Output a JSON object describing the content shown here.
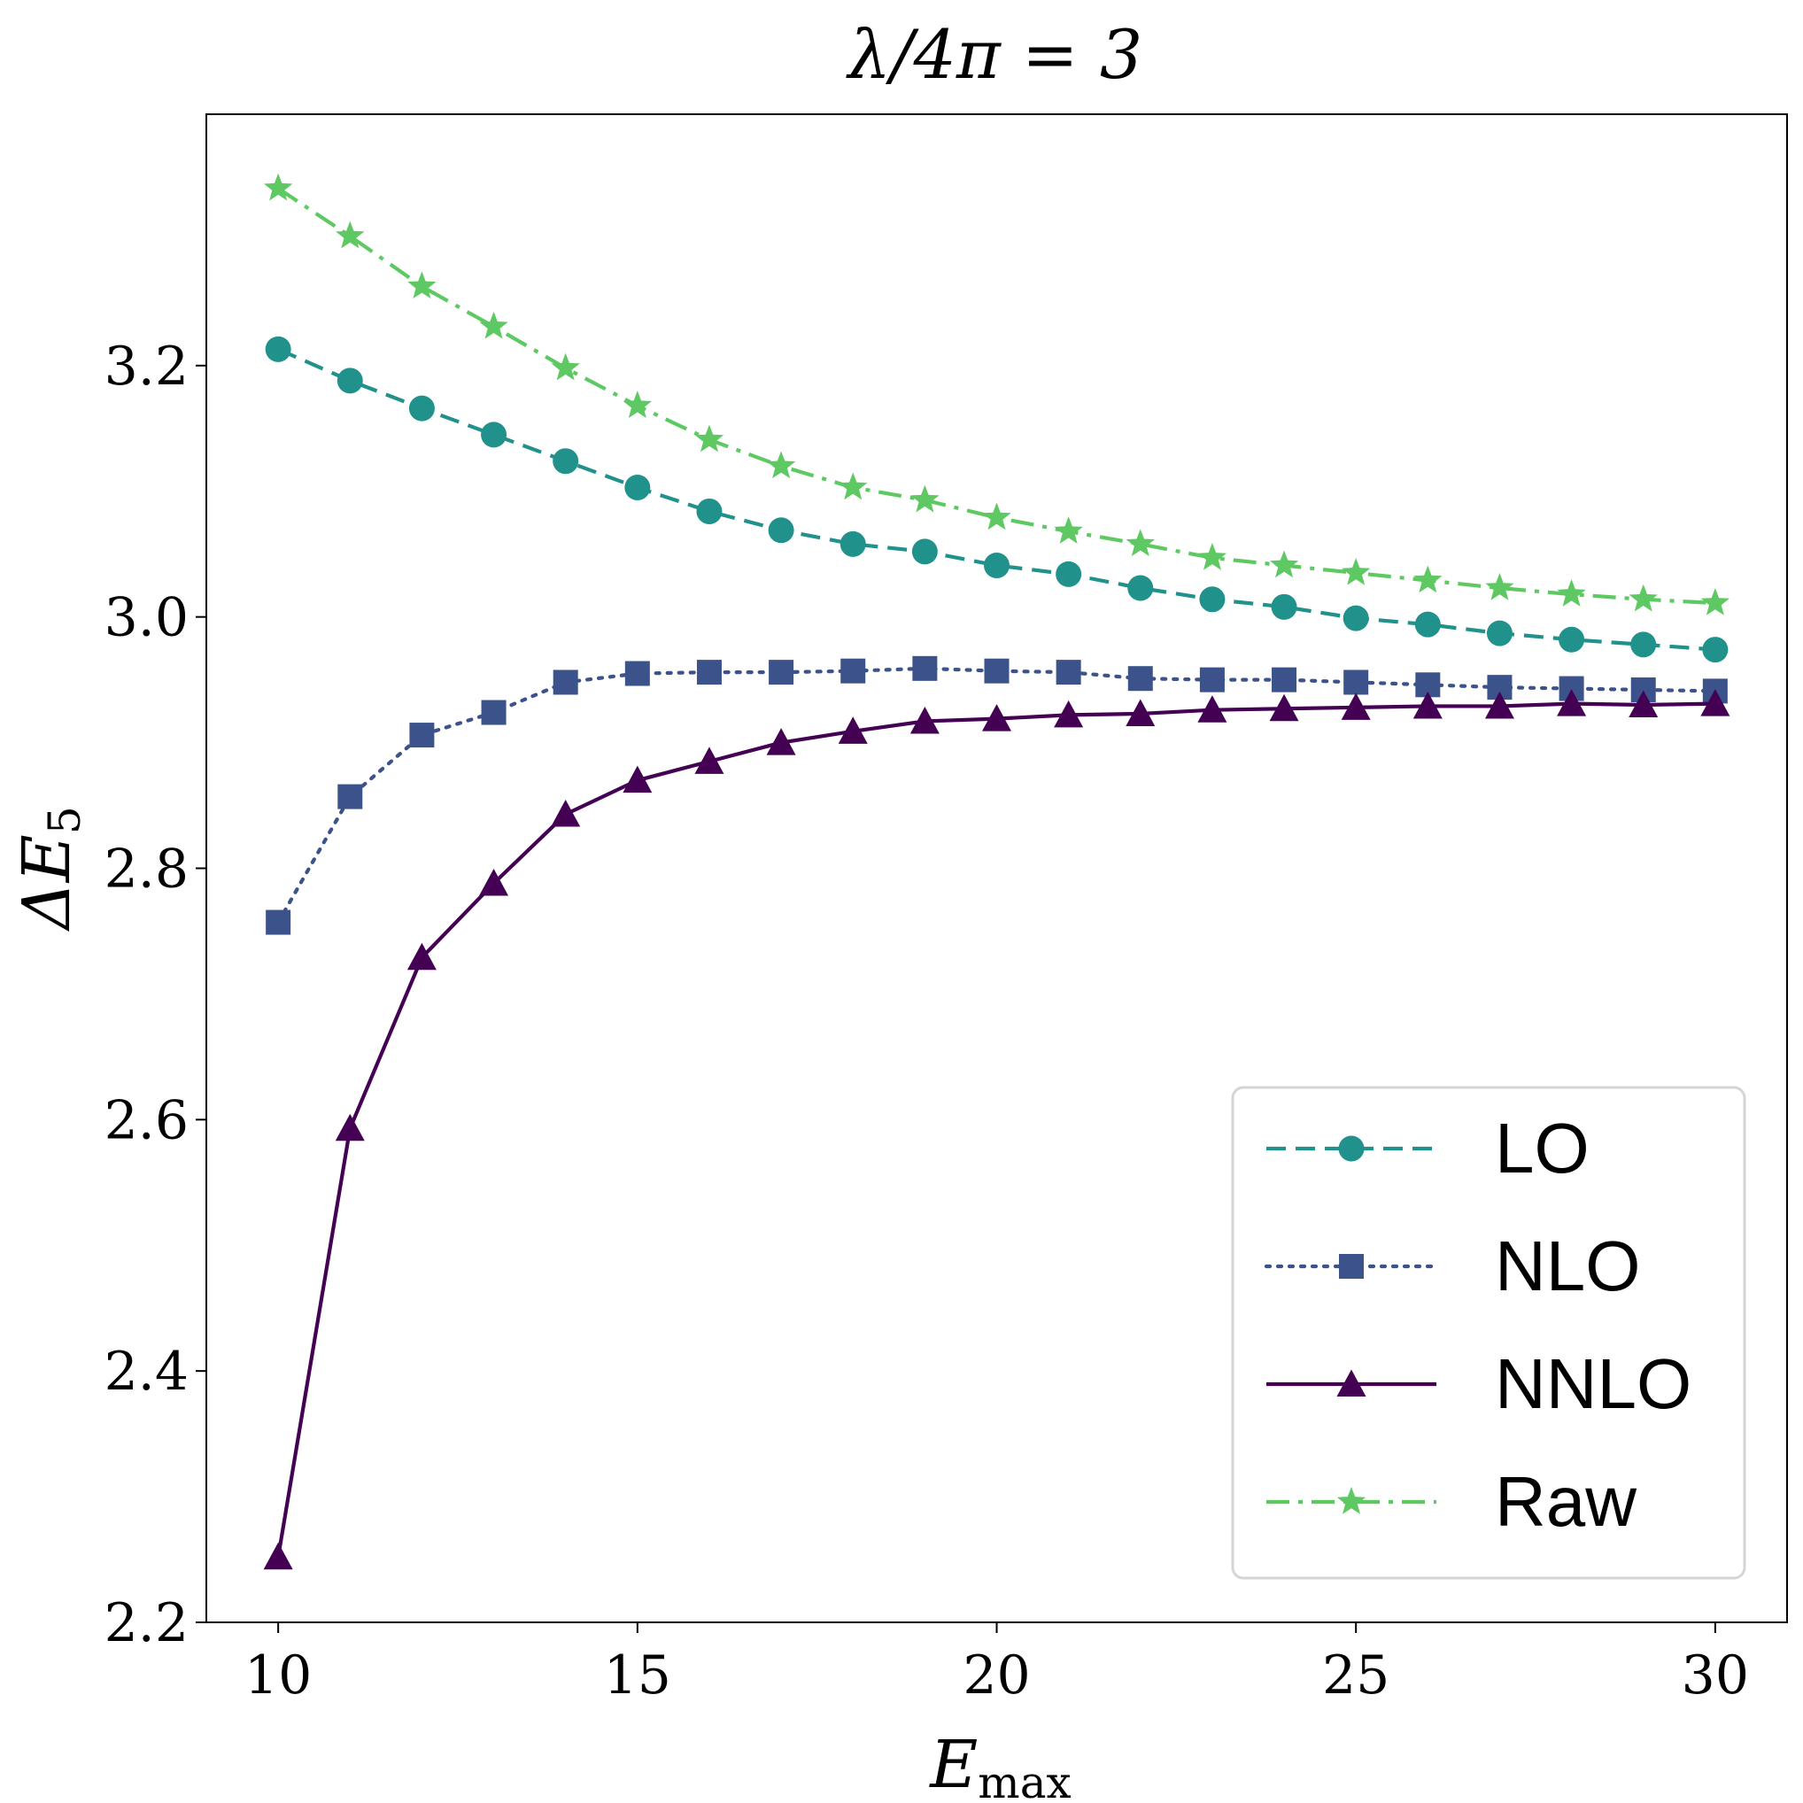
{
  "chart_data": {
    "type": "line",
    "title": "λ/4π = 3",
    "xlabel": "E",
    "xlabel_sub": "max",
    "ylabel": "ΔE",
    "ylabel_sub": "5",
    "xlim": [
      9,
      31
    ],
    "ylim": [
      2.2,
      3.4
    ],
    "xticks": [
      10,
      15,
      20,
      25,
      30
    ],
    "xtick_labels": [
      "10",
      "15",
      "20",
      "25",
      "30"
    ],
    "yticks": [
      2.2,
      2.4,
      2.6,
      2.8,
      3.0,
      3.2
    ],
    "ytick_labels": [
      "2.2",
      "2.4",
      "2.6",
      "2.8",
      "3.0",
      "3.2"
    ],
    "grid": false,
    "legend_position": "bottom-right",
    "x": [
      10,
      11,
      12,
      13,
      14,
      15,
      16,
      17,
      18,
      19,
      20,
      21,
      22,
      23,
      24,
      25,
      26,
      27,
      28,
      29,
      30
    ],
    "series": [
      {
        "name": "LO",
        "color": "#21918c",
        "marker": "circle",
        "linestyle": "dashed",
        "values": [
          3.213,
          3.188,
          3.166,
          3.145,
          3.124,
          3.103,
          3.084,
          3.069,
          3.058,
          3.052,
          3.041,
          3.034,
          3.023,
          3.014,
          3.008,
          2.999,
          2.994,
          2.987,
          2.982,
          2.978,
          2.974
        ]
      },
      {
        "name": "NLO",
        "color": "#3b528b",
        "marker": "square",
        "linestyle": "dotted",
        "values": [
          2.757,
          2.857,
          2.906,
          2.924,
          2.948,
          2.955,
          2.956,
          2.956,
          2.957,
          2.959,
          2.957,
          2.956,
          2.951,
          2.95,
          2.95,
          2.948,
          2.946,
          2.944,
          2.943,
          2.942,
          2.941
        ]
      },
      {
        "name": "NNLO",
        "color": "#440154",
        "marker": "triangle",
        "linestyle": "solid",
        "values": [
          2.252,
          2.593,
          2.729,
          2.788,
          2.843,
          2.87,
          2.885,
          2.9,
          2.909,
          2.917,
          2.919,
          2.922,
          2.923,
          2.926,
          2.927,
          2.928,
          2.929,
          2.929,
          2.931,
          2.93,
          2.931
        ]
      },
      {
        "name": "Raw",
        "color": "#5ec962",
        "marker": "star",
        "linestyle": "dashdot",
        "values": [
          3.341,
          3.303,
          3.263,
          3.231,
          3.198,
          3.168,
          3.141,
          3.12,
          3.103,
          3.093,
          3.079,
          3.068,
          3.058,
          3.047,
          3.041,
          3.035,
          3.029,
          3.023,
          3.018,
          3.014,
          3.011
        ]
      }
    ]
  }
}
